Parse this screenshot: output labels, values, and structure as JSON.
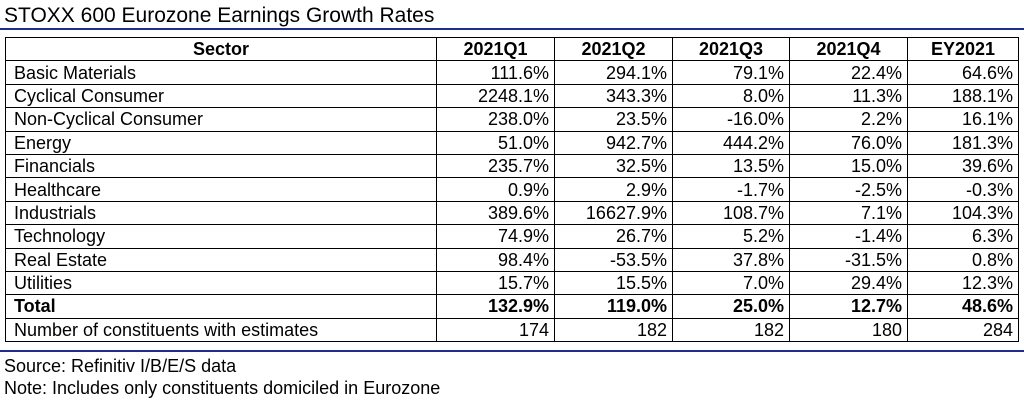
{
  "title": "STOXX 600 Eurozone Earnings Growth Rates",
  "table": {
    "headers": [
      "Sector",
      "2021Q1",
      "2021Q2",
      "2021Q3",
      "2021Q4",
      "EY2021"
    ],
    "rows": [
      [
        "Basic Materials",
        "111.6%",
        "294.1%",
        "79.1%",
        "22.4%",
        "64.6%"
      ],
      [
        "Cyclical Consumer",
        "2248.1%",
        "343.3%",
        "8.0%",
        "11.3%",
        "188.1%"
      ],
      [
        "Non-Cyclical Consumer",
        "238.0%",
        "23.5%",
        "-16.0%",
        "2.2%",
        "16.1%"
      ],
      [
        "Energy",
        "51.0%",
        "942.7%",
        "444.2%",
        "76.0%",
        "181.3%"
      ],
      [
        "Financials",
        "235.7%",
        "32.5%",
        "13.5%",
        "15.0%",
        "39.6%"
      ],
      [
        "Healthcare",
        "0.9%",
        "2.9%",
        "-1.7%",
        "-2.5%",
        "-0.3%"
      ],
      [
        "Industrials",
        "389.6%",
        "16627.9%",
        "108.7%",
        "7.1%",
        "104.3%"
      ],
      [
        "Technology",
        "74.9%",
        "26.7%",
        "5.2%",
        "-1.4%",
        "6.3%"
      ],
      [
        "Real Estate",
        "98.4%",
        "-53.5%",
        "37.8%",
        "-31.5%",
        "0.8%"
      ],
      [
        "Utilities",
        "15.7%",
        "15.5%",
        "7.0%",
        "29.4%",
        "12.3%"
      ],
      [
        "Total",
        "132.9%",
        "119.0%",
        "25.0%",
        "12.7%",
        "48.6%"
      ],
      [
        "Number of constituents with estimates",
        "174",
        "182",
        "182",
        "180",
        "284"
      ]
    ]
  },
  "source": "Source: Refinitiv I/B/E/S data",
  "note": "Note: Includes only constituents domiciled in Eurozone",
  "colors": {
    "rule": "#1f2d8f",
    "text": "#000000",
    "border": "#000000",
    "background": "#ffffff"
  }
}
